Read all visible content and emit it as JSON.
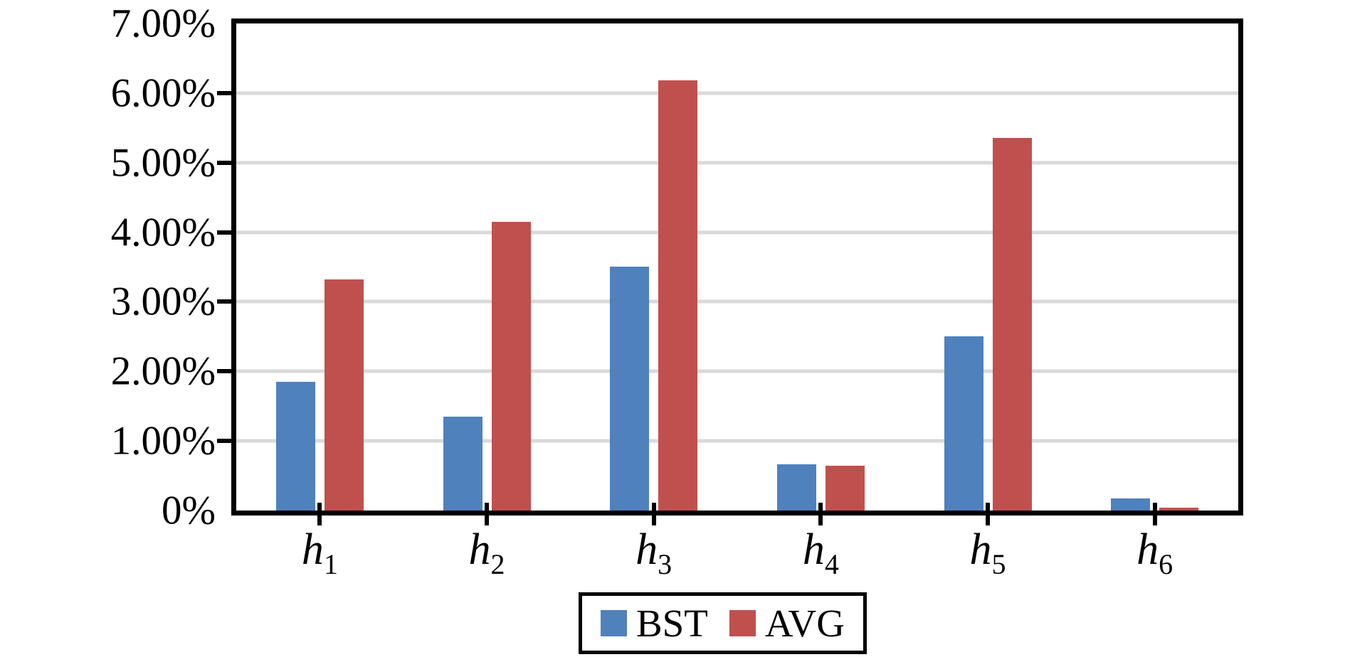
{
  "chart_data": {
    "type": "bar",
    "title": "",
    "xlabel": "",
    "ylabel": "",
    "unit": "%",
    "categories": [
      {
        "base": "h",
        "sub": "1"
      },
      {
        "base": "h",
        "sub": "2"
      },
      {
        "base": "h",
        "sub": "3"
      },
      {
        "base": "h",
        "sub": "4"
      },
      {
        "base": "h",
        "sub": "5"
      },
      {
        "base": "h",
        "sub": "6"
      }
    ],
    "series": [
      {
        "name": "BST",
        "color": "#4F81BD",
        "values": [
          1.85,
          1.35,
          3.51,
          0.66,
          2.5,
          0.17
        ]
      },
      {
        "name": "AVG",
        "color": "#C0504D",
        "values": [
          3.32,
          4.15,
          6.18,
          0.64,
          5.36,
          0.04
        ]
      }
    ],
    "ylim": [
      0,
      7
    ],
    "y_ticks": [
      {
        "label": "7.00%",
        "value": 7
      },
      {
        "label": "6.00%",
        "value": 6
      },
      {
        "label": "5.00%",
        "value": 5
      },
      {
        "label": "4.00%",
        "value": 4
      },
      {
        "label": "3.00%",
        "value": 3
      },
      {
        "label": "2.00%",
        "value": 2
      },
      {
        "label": "1.00%",
        "value": 1
      },
      {
        "label": "0%",
        "value": 0
      }
    ],
    "grid": "horizontal",
    "gridline_color": "#D9D9D9",
    "axis_color": "#000000",
    "plot_background": "#FFFFFF",
    "legend": {
      "position": "bottom-center",
      "border": true,
      "entries": [
        "BST",
        "AVG"
      ]
    }
  }
}
